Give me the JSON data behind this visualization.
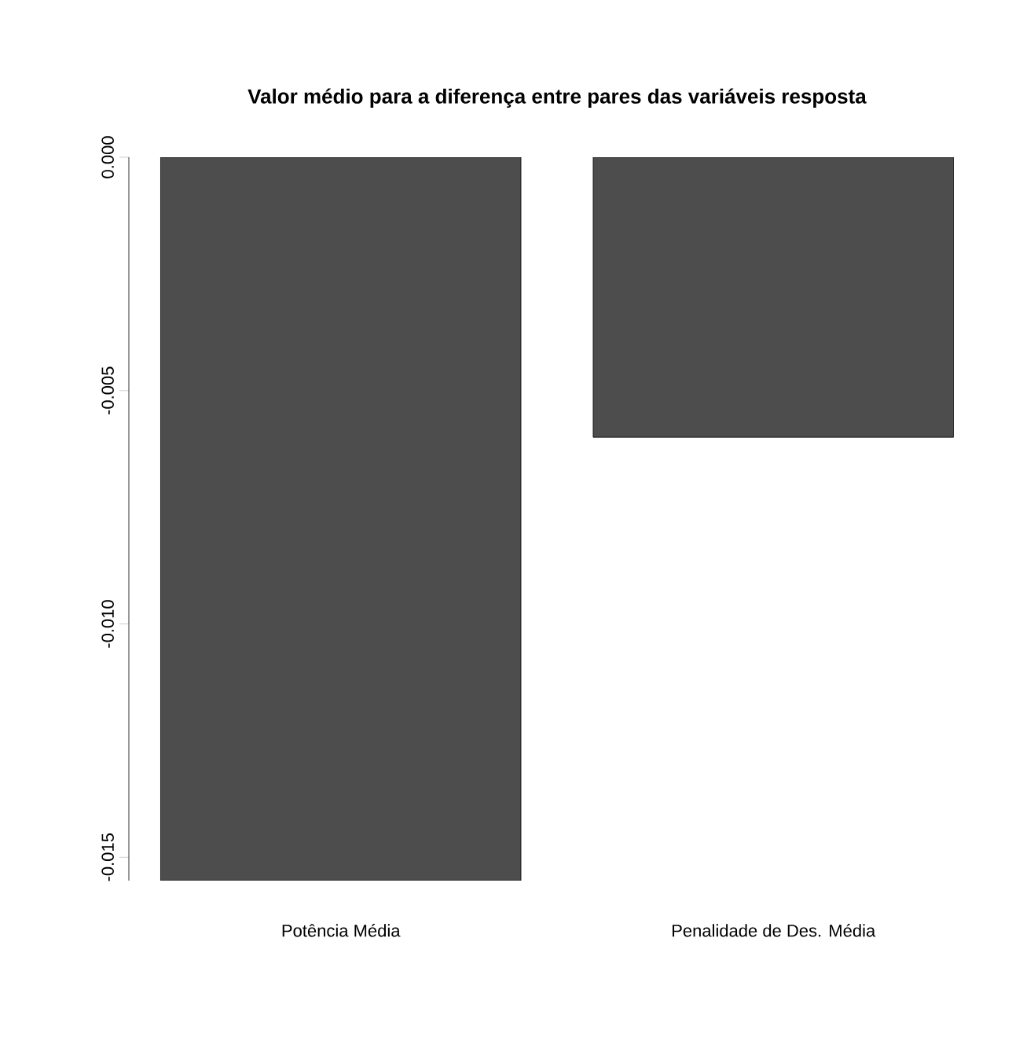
{
  "chart_data": {
    "type": "bar",
    "title": "Valor médio para a diferença entre pares das variáveis resposta",
    "categories": [
      "Potência Média",
      "Penalidade de Des. Média"
    ],
    "values": [
      -0.0155,
      -0.006
    ],
    "color": "#4d4d4d",
    "ylim": [
      -0.0155,
      0
    ],
    "yticks": [
      {
        "value": 0,
        "label": "0.000"
      },
      {
        "value": -0.005,
        "label": "-0.005"
      },
      {
        "value": -0.01,
        "label": "-0.010"
      },
      {
        "value": -0.015,
        "label": "-0.015"
      }
    ],
    "grid": false
  }
}
